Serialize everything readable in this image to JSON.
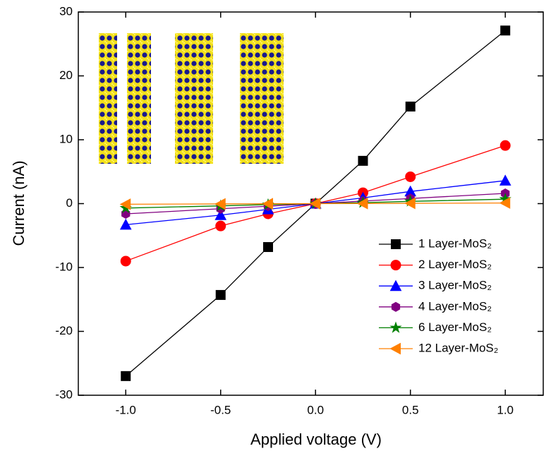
{
  "chart_data": {
    "type": "line",
    "x_label": "Applied voltage (V)",
    "y_label": "Current (nA)",
    "x": [
      -1.0,
      -0.5,
      -0.25,
      0.0,
      0.25,
      0.5,
      1.0
    ],
    "series": [
      {
        "name": "1 Layer-MoS₂",
        "color": "#000000",
        "marker": "square",
        "values": [
          -27.0,
          -14.3,
          -6.8,
          0,
          6.7,
          15.2,
          27.1
        ]
      },
      {
        "name": "2 Layer-MoS₂",
        "color": "#ff0000",
        "marker": "circle",
        "values": [
          -9.0,
          -3.5,
          -1.6,
          0,
          1.7,
          4.2,
          9.1
        ]
      },
      {
        "name": "3 Layer-MoS₂",
        "color": "#0000ff",
        "marker": "triangle-up",
        "values": [
          -3.3,
          -1.8,
          -0.9,
          0,
          0.9,
          1.9,
          3.6
        ]
      },
      {
        "name": "4 Layer-MoS₂",
        "color": "#800080",
        "marker": "hexagon",
        "values": [
          -1.6,
          -0.8,
          -0.4,
          0,
          0.4,
          0.8,
          1.6
        ]
      },
      {
        "name": "6 Layer-MoS₂",
        "color": "#008000",
        "marker": "star",
        "values": [
          -0.7,
          -0.35,
          -0.15,
          0,
          0.15,
          0.35,
          0.7
        ]
      },
      {
        "name": "12 Layer-MoS₂",
        "color": "#ff8000",
        "marker": "triangle-left",
        "values": [
          -0.1,
          -0.05,
          -0.02,
          0,
          0.02,
          0.05,
          0.1
        ]
      }
    ],
    "xlim": [
      -1.25,
      1.2
    ],
    "ylim": [
      -30,
      30
    ],
    "xticks": [
      {
        "value": -1.0,
        "label": "-1.0"
      },
      -0.5,
      {
        "value": 0.0,
        "label": "0.0"
      },
      0.5,
      {
        "value": 1.0,
        "label": "1.0"
      }
    ],
    "yticks": [
      -30,
      -20,
      -10,
      0,
      10,
      20,
      30
    ],
    "legend": "lower right",
    "grid": false
  }
}
